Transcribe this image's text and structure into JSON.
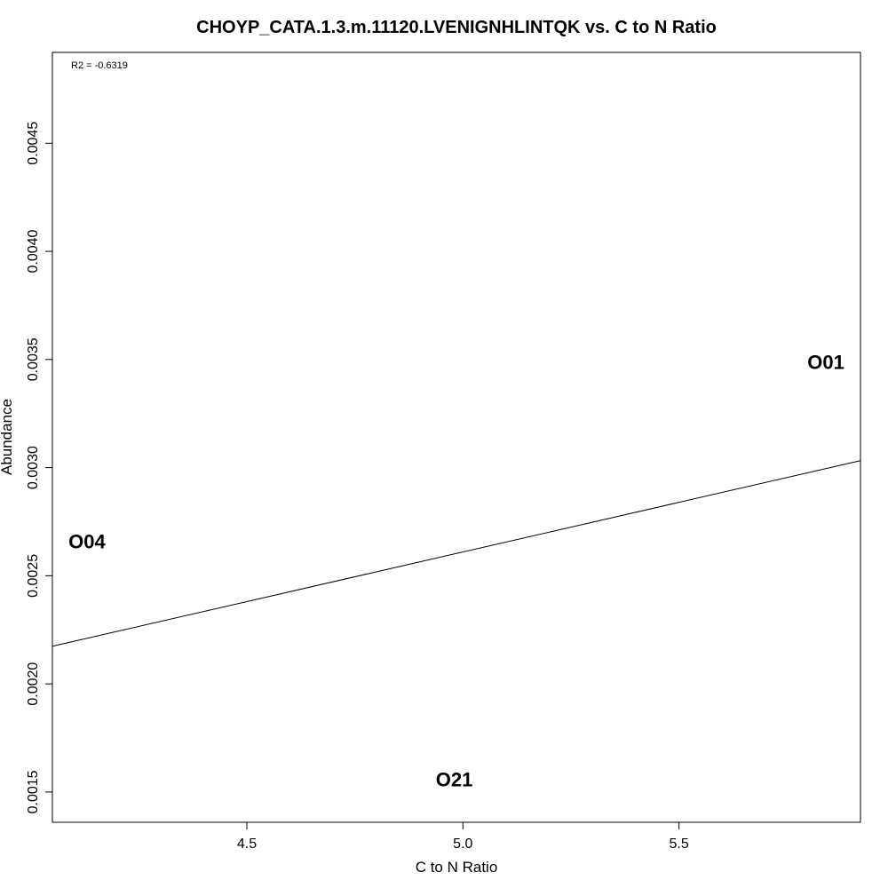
{
  "chart_data": {
    "type": "scatter",
    "title": "CHOYP_CATA.1.3.m.11120.LVENIGNHLINTQK vs. C to N Ratio",
    "xlabel": "C to N Ratio",
    "ylabel": "Abundance",
    "xlim": [
      4.05,
      5.92
    ],
    "ylim": [
      0.00136,
      0.00492
    ],
    "x_ticks": [
      {
        "value": 4.5,
        "label": "4.5"
      },
      {
        "value": 5.0,
        "label": "5.0"
      },
      {
        "value": 5.5,
        "label": "5.5"
      }
    ],
    "y_ticks": [
      {
        "value": 0.0015,
        "label": "0.0015"
      },
      {
        "value": 0.002,
        "label": "0.0020"
      },
      {
        "value": 0.0025,
        "label": "0.0025"
      },
      {
        "value": 0.003,
        "label": "0.0030"
      },
      {
        "value": 0.0035,
        "label": "0.0035"
      },
      {
        "value": 0.004,
        "label": "0.0040"
      },
      {
        "value": 0.0045,
        "label": "0.0045"
      }
    ],
    "points": [
      {
        "label": "O04",
        "x": 4.13,
        "y": 0.00266
      },
      {
        "label": "O21",
        "x": 4.98,
        "y": 0.00156
      },
      {
        "label": "O01",
        "x": 5.84,
        "y": 0.00349
      }
    ],
    "fit_line": {
      "intercept": 0.000315,
      "slope": 0.000459
    },
    "annotation": "R2 = -0.6319",
    "grid": false,
    "legend": "none"
  }
}
